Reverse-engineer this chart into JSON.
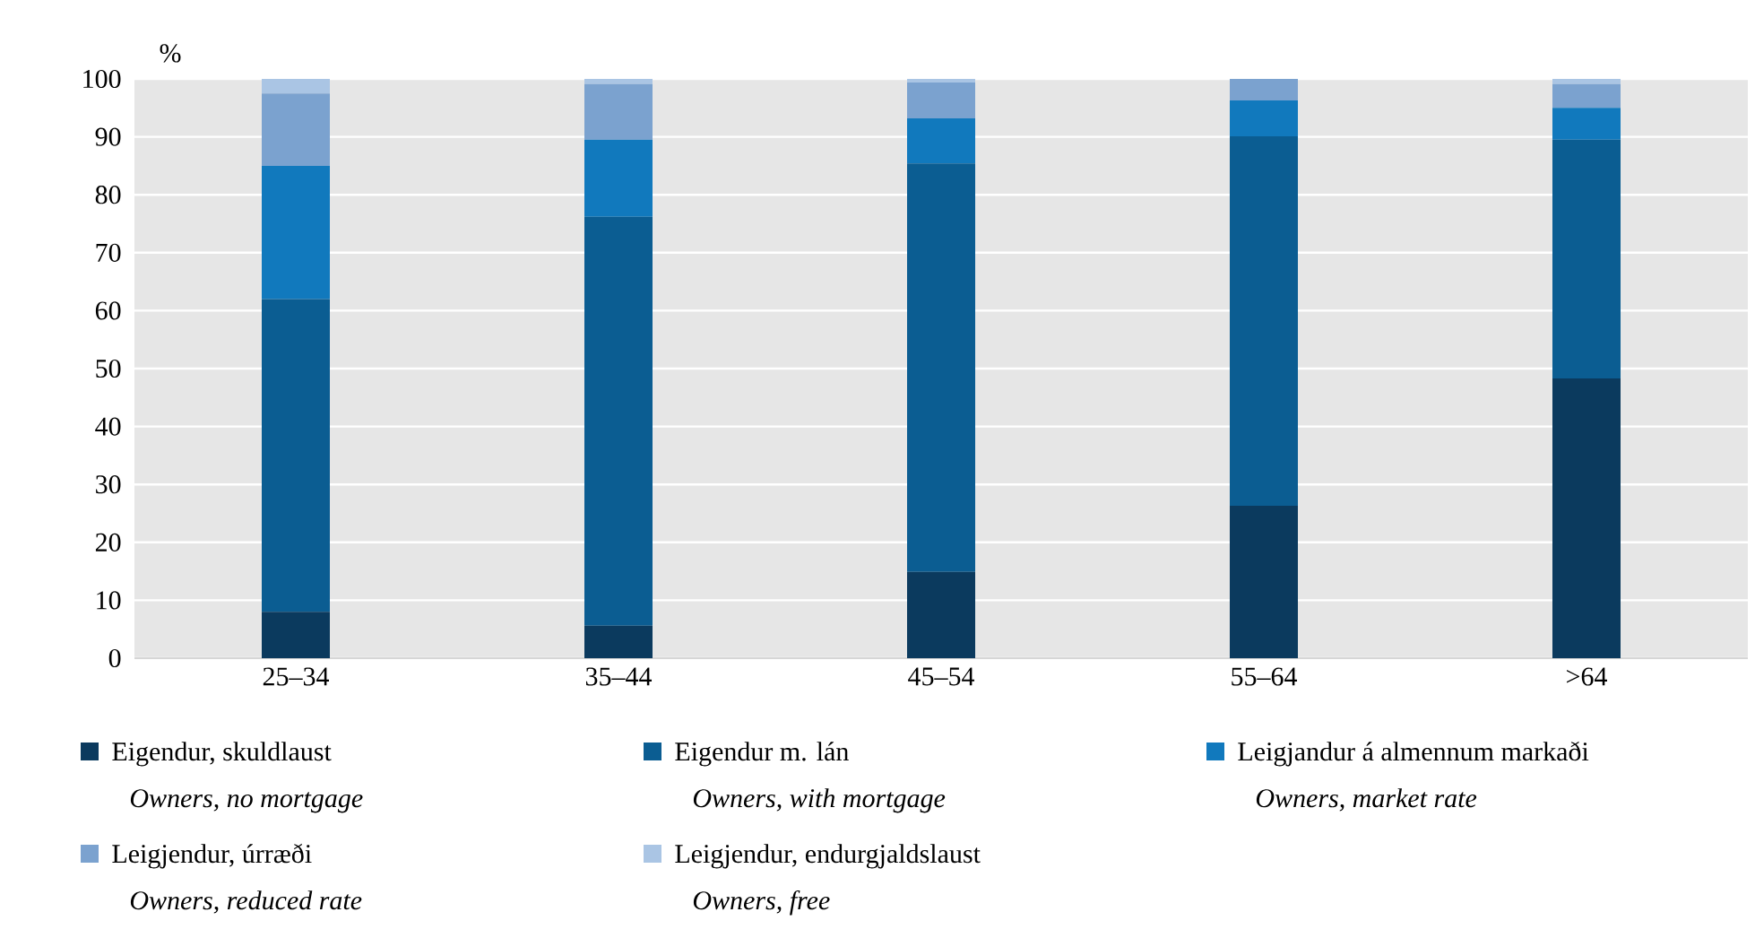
{
  "chart_data": {
    "type": "bar",
    "stacked": true,
    "ylabel": "%",
    "categories": [
      "25–34",
      "35–44",
      "45–54",
      "55–64",
      ">64"
    ],
    "series": [
      {
        "name": "Eigendur, skuldlaust",
        "color": "#0b3a5e",
        "values": [
          8,
          5.6,
          14.9,
          26.3,
          48.3
        ]
      },
      {
        "name": "Eigendur m. lán",
        "color": "#0b5d92",
        "values": [
          54,
          70.6,
          70.5,
          63.8,
          41.2
        ]
      },
      {
        "name": "Leigjandur á almennum markaði",
        "color": "#1179bd",
        "values": [
          23,
          13.3,
          7.8,
          6.2,
          5.5
        ]
      },
      {
        "name": "Leigjendur, úrræði",
        "color": "#7ba2cf",
        "values": [
          12.5,
          9.6,
          6.2,
          3.7,
          4.1
        ]
      },
      {
        "name": "Leigjendur, endurgjaldslaust",
        "color": "#aac5e4",
        "values": [
          2.5,
          0.9,
          0.6,
          0,
          0.9
        ]
      }
    ],
    "annotations": [
      "Owners, no mortgage",
      "Owners, with mortgage",
      "Owners, market rate",
      "Owners, reduced rate",
      "Owners, free"
    ],
    "ylim": [
      0,
      100
    ],
    "yticks": [
      0,
      10,
      20,
      30,
      40,
      50,
      60,
      70,
      80,
      90,
      100
    ],
    "grid": "y",
    "legend": "bottom"
  }
}
